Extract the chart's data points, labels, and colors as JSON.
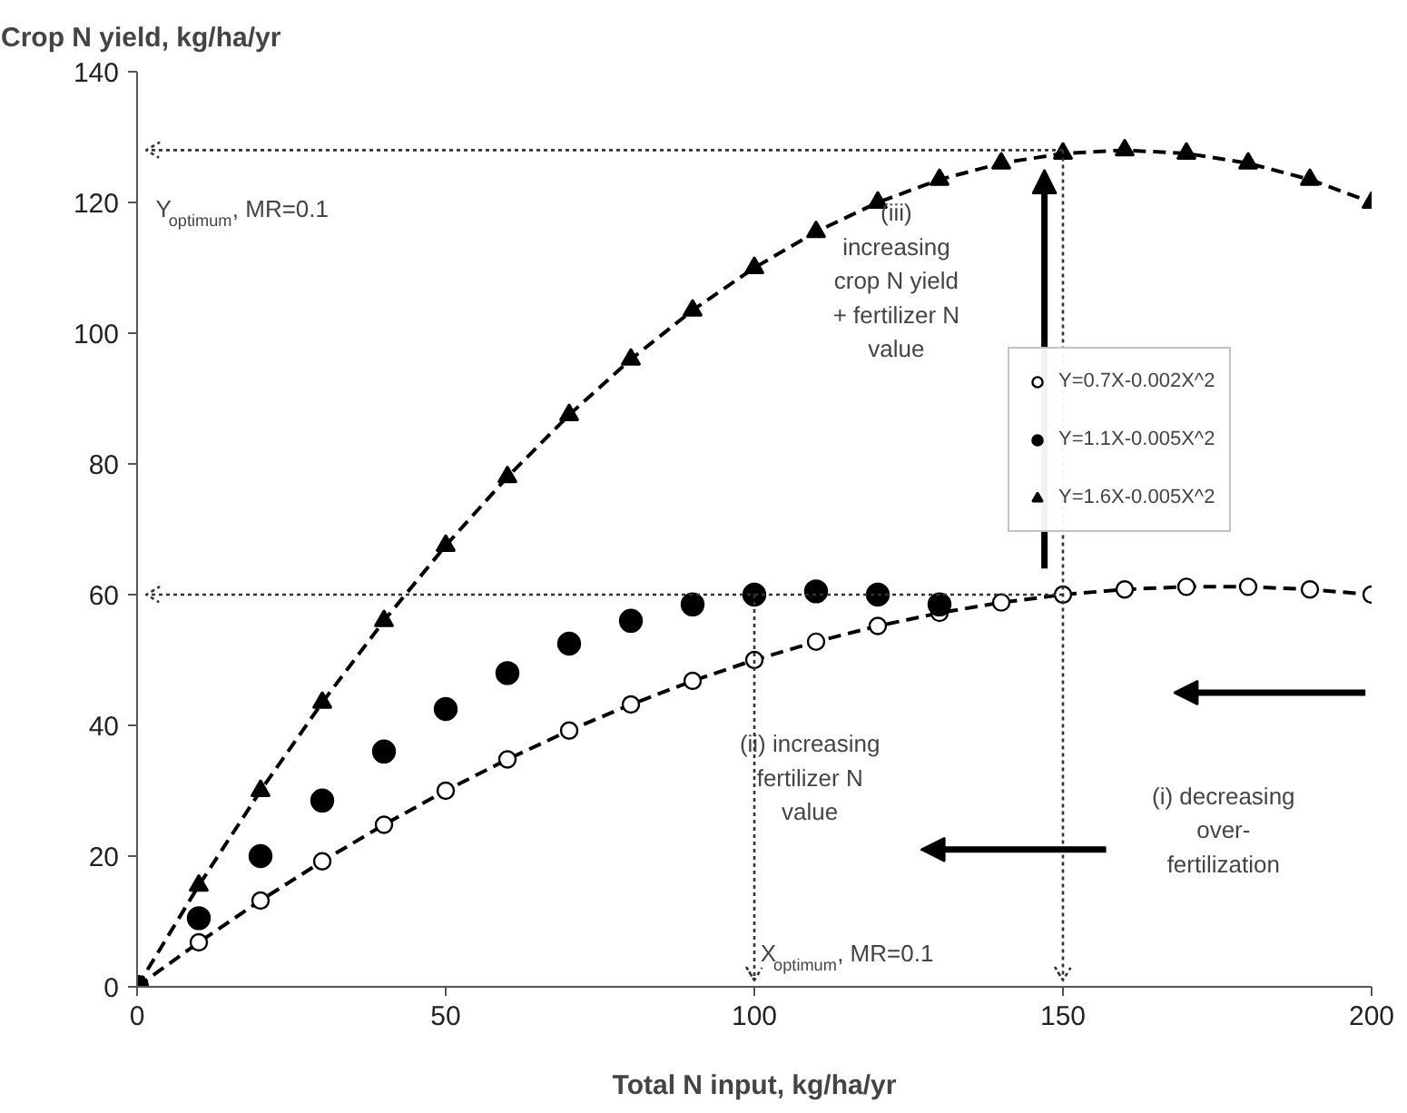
{
  "chart_data": {
    "type": "scatter",
    "ylabel": "Crop N yield, kg/ha/yr",
    "xlabel": "Total N input, kg/ha/yr",
    "xlim": [
      0,
      200
    ],
    "xticks": [
      0,
      50,
      100,
      150,
      200
    ],
    "ylim": [
      0,
      140
    ],
    "yticks": [
      0,
      20,
      40,
      60,
      80,
      100,
      120,
      140
    ],
    "legend": "right",
    "marker": "circle",
    "series": [
      {
        "name": "Y=0.7X-0.002X^2",
        "color": "#000000",
        "type": "line",
        "line_style": "dashed",
        "marker": "circle",
        "x": [
          0,
          10,
          20,
          30,
          40,
          50,
          60,
          70,
          80,
          90,
          100,
          110,
          120,
          130,
          140,
          150,
          160,
          170,
          180,
          190,
          200
        ],
        "values": [
          0,
          6.8,
          13.2,
          19.2,
          24.8,
          30,
          34.8,
          39.2,
          43.2,
          46.8,
          50,
          52.8,
          55.2,
          57.2,
          58.8,
          60,
          60.8,
          61.2,
          61.2,
          60.8,
          60
        ]
      },
      {
        "name": "Y=1.1X-0.005X^2",
        "color": "#000000",
        "x": [
          0,
          10,
          20,
          30,
          40,
          50,
          60,
          70,
          80,
          90,
          100,
          110,
          120,
          130
        ],
        "values": [
          0,
          10.5,
          20,
          28.5,
          36,
          42.5,
          48,
          52.5,
          56,
          58.5,
          60,
          60.5,
          60,
          58.5
        ]
      },
      {
        "name": "Y=1.6X-0.005X^2",
        "color": "#000000",
        "type": "line",
        "line_style": "dashed",
        "marker": "triangle",
        "x": [
          0,
          10,
          20,
          30,
          40,
          50,
          60,
          70,
          80,
          90,
          100,
          110,
          120,
          130,
          140,
          150,
          160,
          170,
          180,
          190,
          200
        ],
        "values": [
          0,
          15.5,
          30,
          43.5,
          56,
          67.5,
          78,
          87.5,
          96,
          103.5,
          110,
          115.5,
          120,
          123.5,
          126,
          127.5,
          128,
          127.5,
          126,
          123.5,
          120
        ]
      }
    ],
    "ref_lines": [
      {
        "axis": "y",
        "value": 128,
        "line_style": "dotted"
      },
      {
        "axis": "y",
        "value": 60,
        "line_style": "dotted"
      },
      {
        "axis": "x",
        "value": 150,
        "line_style": "dotted"
      },
      {
        "axis": "x",
        "value": 100,
        "line_style": "dotted"
      }
    ],
    "annotations": [
      "Y$_{optimum}$, MR=0.1",
      "X$_{optimum}$, MR=0.1",
      "(iii)\nincreasing\ncrop N yield\n+ fertilizer N\nvalue",
      "(ii) increasing\nfertilizer N\nvalue",
      "(i) decreasing\nover-\nfertilization"
    ]
  }
}
